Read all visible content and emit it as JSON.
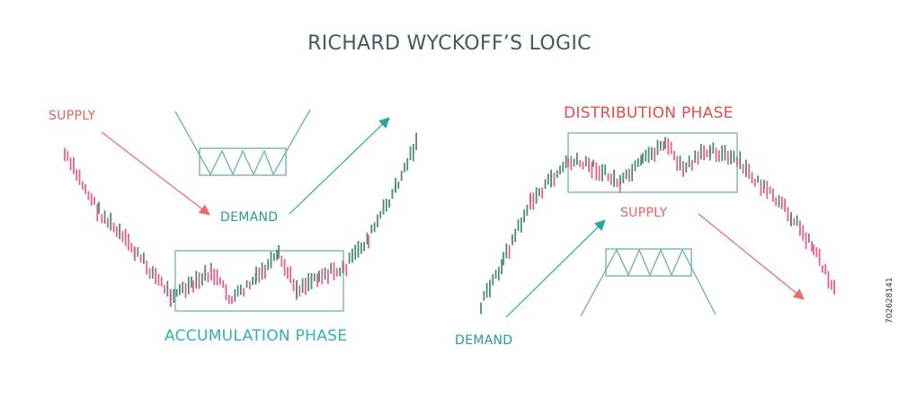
{
  "title": "RICHARD WYCKOFF’S LOGIC",
  "left": {
    "supply": "SUPPLY",
    "demand": "DEMAND",
    "phase": "ACCUMULATION PHASE"
  },
  "right": {
    "phase": "DISTRIBUTION PHASE",
    "supply": "SUPPLY",
    "demand": "DEMAND"
  },
  "watermark_id": "702628141",
  "colors": {
    "bearish_candle": "#e8608a",
    "bullish_candle": "#4e8b7c",
    "box": "#6db3b0",
    "supply": "#e8605e",
    "demand": "#2a9a93",
    "phase_accumulation": "#2fb3aa",
    "phase_distribution": "#e84a4a"
  }
}
